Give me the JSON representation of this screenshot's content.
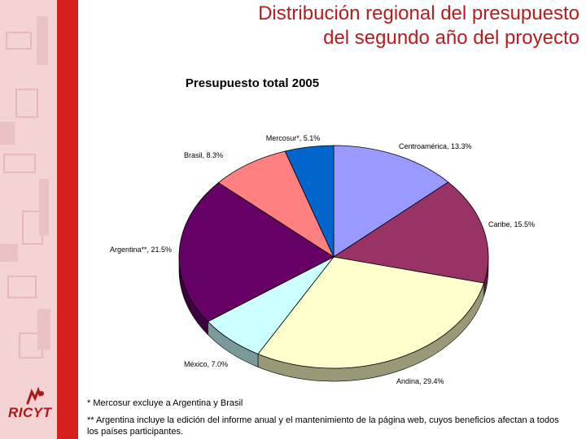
{
  "page": {
    "title_line1": "Distribución regional del presupuesto",
    "title_line2": "del segundo año del proyecto"
  },
  "logo": {
    "text": "RICYT"
  },
  "colors": {
    "accent_red": "#d62020",
    "panel_pink": "#f3d3d3",
    "title_red": "#b81c1c"
  },
  "chart_data": {
    "type": "pie",
    "title": "Presupuesto total 2005",
    "three_d": true,
    "slices": [
      {
        "label": "Centroamérica, 13.3%",
        "value": 13.3,
        "color": "#9999ff"
      },
      {
        "label": "Caribe, 15.5%",
        "value": 15.5,
        "color": "#993366"
      },
      {
        "label": "Andina, 29.4%",
        "value": 29.4,
        "color": "#ffffcc"
      },
      {
        "label": "México, 7.0%",
        "value": 7.0,
        "color": "#ccffff"
      },
      {
        "label": "Argentina**, 21.5%",
        "value": 21.5,
        "color": "#660066"
      },
      {
        "label": "Brasil, 8.3%",
        "value": 8.3,
        "color": "#ff8080"
      },
      {
        "label": "Mercosur*, 5.1%",
        "value": 5.1,
        "color": "#0066cc"
      }
    ]
  },
  "footnotes": {
    "note1": "* Mercosur excluye a Argentina y Brasil",
    "note2": "** Argentina incluye la edición del informe anual y el mantenimiento de la página web, cuyos beneficios afectan a todos los países participantes."
  }
}
